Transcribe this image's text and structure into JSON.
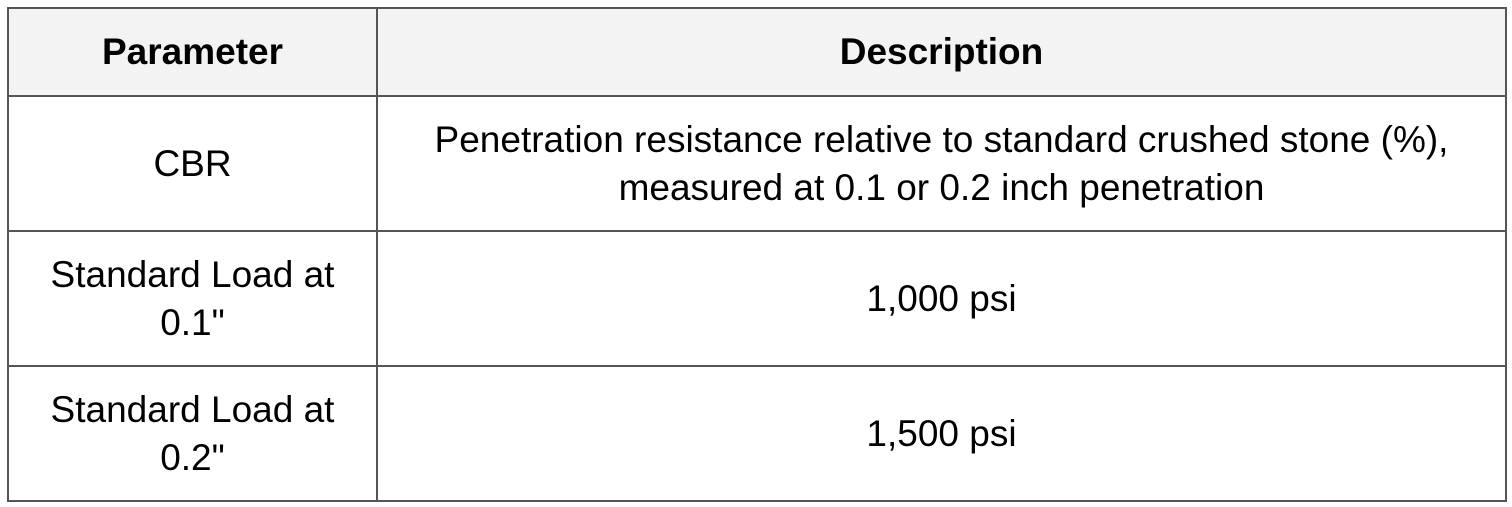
{
  "table": {
    "headers": [
      "Parameter",
      "Description"
    ],
    "rows": [
      {
        "parameter": "CBR",
        "description": "Penetration resistance relative to standard crushed stone (%), measured at 0.1 or 0.2 inch penetration"
      },
      {
        "parameter": "Standard Load at 0.1\"",
        "description": "1,000 psi"
      },
      {
        "parameter": "Standard Load at 0.2\"",
        "description": "1,500 psi"
      }
    ]
  }
}
